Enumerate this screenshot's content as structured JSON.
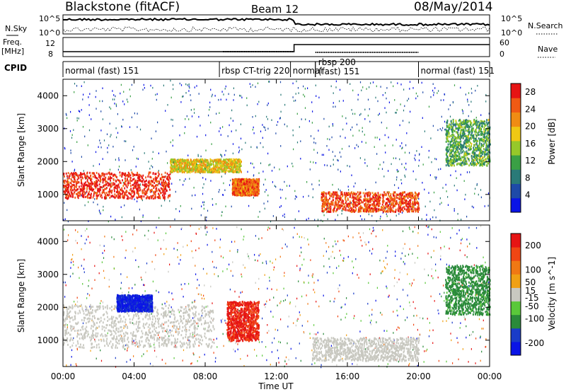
{
  "header": {
    "station": "Blackstone (fitACF)",
    "beam": "Beam 12",
    "date": "08/May/2014"
  },
  "panels": {
    "nsky_label": "N.Sky",
    "nsearch_label": "N.Search",
    "noise_ticks_left": [
      "10^5",
      "10^0"
    ],
    "noise_ticks_right": [
      "10^5",
      "10^0"
    ],
    "freq_label_1": "Freq.",
    "freq_label_2": "[MHz]",
    "freq_ticks": [
      "12",
      "8"
    ],
    "nave_label": "Nave",
    "nave_ticks": [
      "60",
      "0"
    ],
    "cpid_label": "CPID",
    "cpid_segments": [
      {
        "label": "normal (fast) 151",
        "start_h": 0.0,
        "end_h": 8.8
      },
      {
        "label": "rbsp CT-trig 220",
        "start_h": 8.8,
        "end_h": 12.8
      },
      {
        "label": "normal",
        "start_h": 12.8,
        "end_h": 14.2
      },
      {
        "label": "rbsp 200",
        "start_h": 14.2,
        "end_h": 20.0
      },
      {
        "label": "(fast) 151",
        "start_h": 14.2,
        "end_h": 20.0
      },
      {
        "label": "normal (fast) 151",
        "start_h": 20.0,
        "end_h": 24.0
      }
    ]
  },
  "colors": {
    "power_scale": [
      "#0a14e6",
      "#1e4aa8",
      "#2a7a78",
      "#3aa045",
      "#96c82a",
      "#f0c814",
      "#f08c14",
      "#f05a14",
      "#e61414"
    ],
    "velocity_scale": [
      "#0a14e6",
      "#1a3cc8",
      "#2a8a3a",
      "#5ac83a",
      "#c8c8c0",
      "#f0a014",
      "#f07814",
      "#f04614",
      "#e61414"
    ]
  },
  "chart_data": [
    {
      "type": "heatmap",
      "title": "",
      "xlabel": "Time UT",
      "ylabel": "Slant Range [km]",
      "x_ticks": [
        "00:00",
        "04:00",
        "08:00",
        "12:00",
        "16:00",
        "20:00",
        "00:00"
      ],
      "xlim_hours": [
        0,
        24
      ],
      "y_ticks": [
        1000,
        2000,
        3000,
        4000
      ],
      "ylim": [
        200,
        4500
      ],
      "colorbar": {
        "label": "Power [dB]",
        "ticks": [
          4,
          8,
          12,
          16,
          20,
          24,
          28
        ],
        "range": [
          0,
          30
        ]
      },
      "features": [
        {
          "t_start": 0.0,
          "t_end": 6.0,
          "range_start_km": 900,
          "range_end_km": 1700,
          "value": 28
        },
        {
          "t_start": 6.0,
          "t_end": 10.0,
          "range_start_km": 1700,
          "range_end_km": 2100,
          "value": 18
        },
        {
          "t_start": 9.5,
          "t_end": 11.0,
          "range_start_km": 1000,
          "range_end_km": 1500,
          "value": 24
        },
        {
          "t_start": 14.5,
          "t_end": 20.0,
          "range_start_km": 500,
          "range_end_km": 1100,
          "value": 26
        },
        {
          "t_start": 21.5,
          "t_end": 24.0,
          "range_start_km": 1900,
          "range_end_km": 3300,
          "value": 12
        }
      ]
    },
    {
      "type": "heatmap",
      "title": "",
      "xlabel": "Time UT",
      "ylabel": "Slant Range [km]",
      "x_ticks": [
        "00:00",
        "04:00",
        "08:00",
        "12:00",
        "16:00",
        "20:00",
        "00:00"
      ],
      "xlim_hours": [
        0,
        24
      ],
      "y_ticks": [
        1000,
        2000,
        3000,
        4000
      ],
      "ylim": [
        200,
        4500
      ],
      "colorbar": {
        "label": "Velocity [m s^-1]",
        "ticks": [
          200,
          100,
          50,
          15,
          -15,
          -50,
          -100,
          -200
        ],
        "range": [
          -250,
          250
        ]
      },
      "features": [
        {
          "t_start": 0.0,
          "t_end": 8.5,
          "range_start_km": 800,
          "range_end_km": 2100,
          "value": 0
        },
        {
          "t_start": 3.0,
          "t_end": 5.0,
          "range_start_km": 1900,
          "range_end_km": 2400,
          "value": -200
        },
        {
          "t_start": 9.2,
          "t_end": 11.0,
          "range_start_km": 1000,
          "range_end_km": 2200,
          "value": 200
        },
        {
          "t_start": 14.0,
          "t_end": 20.0,
          "range_start_km": 400,
          "range_end_km": 1100,
          "value": 0
        },
        {
          "t_start": 21.5,
          "t_end": 24.0,
          "range_start_km": 1800,
          "range_end_km": 3300,
          "value": -100
        }
      ]
    }
  ]
}
